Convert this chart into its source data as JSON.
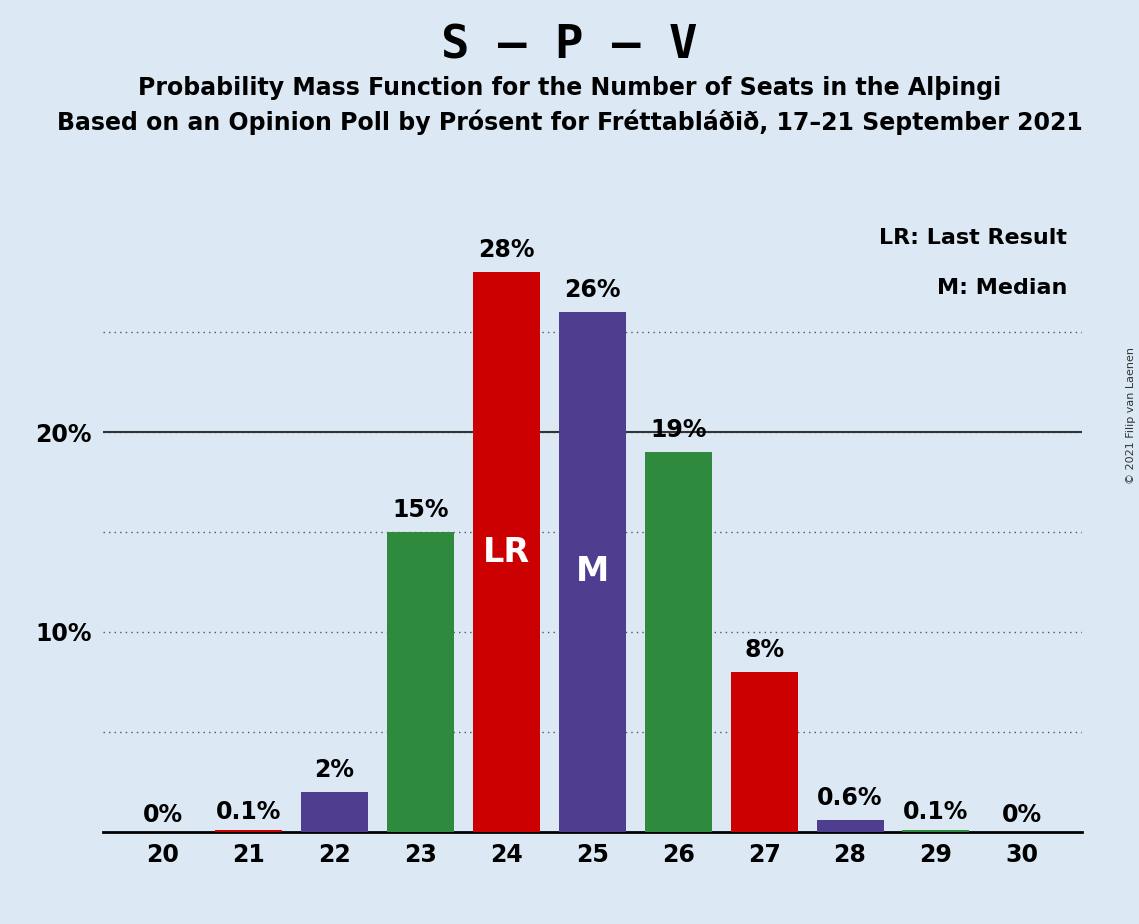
{
  "title": "S – P – V",
  "subtitle1": "Probability Mass Function for the Number of Seats in the Alþingi",
  "subtitle2": "Based on an Opinion Poll by Prósent for Fréttabláðið, 17–21 September 2021",
  "copyright": "© 2021 Filip van Laenen",
  "seats": [
    20,
    21,
    22,
    23,
    24,
    25,
    26,
    27,
    28,
    29,
    30
  ],
  "values": [
    0.0,
    0.1,
    2.0,
    15.0,
    28.0,
    26.0,
    19.0,
    8.0,
    0.6,
    0.1,
    0.0
  ],
  "bar_colors": [
    "#cc0000",
    "#cc0000",
    "#4f3d8f",
    "#2e8b3e",
    "#cc0000",
    "#4f3d8f",
    "#2e8b3e",
    "#cc0000",
    "#4f3d8f",
    "#2e8b3e",
    "#cc0000"
  ],
  "labels": [
    "0%",
    "0.1%",
    "2%",
    "15%",
    "28%",
    "26%",
    "19%",
    "8%",
    "0.6%",
    "0.1%",
    "0%"
  ],
  "lr_seat": 24,
  "median_seat": 25,
  "ylim": [
    0,
    31
  ],
  "background_color": "#dce9f5",
  "title_fontsize": 34,
  "subtitle_fontsize": 17,
  "label_fontsize": 17,
  "axis_fontsize": 17,
  "bar_width": 0.78,
  "legend_text1": "LR: Last Result",
  "legend_text2": "M: Median"
}
